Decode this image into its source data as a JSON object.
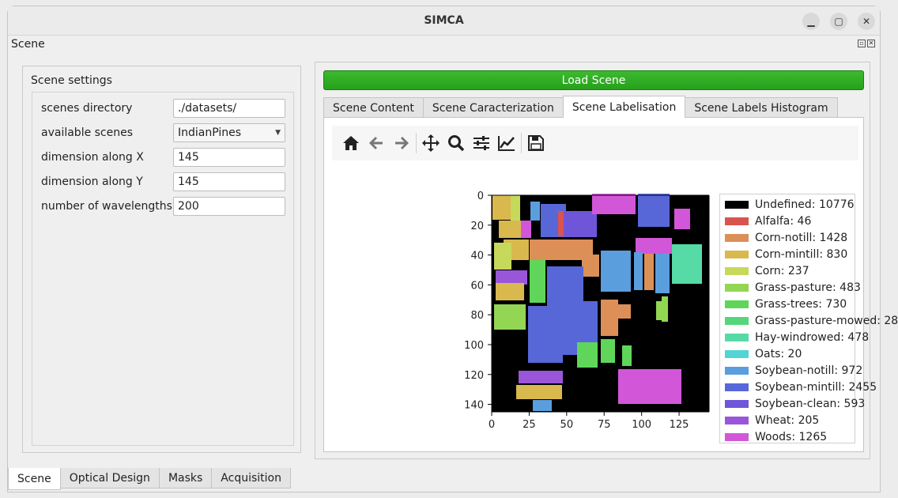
{
  "window": {
    "title": "SIMCA"
  },
  "dock": {
    "title": "Scene"
  },
  "settings": {
    "group_title": "Scene settings",
    "rows": [
      {
        "label": "scenes directory",
        "value": "./datasets/",
        "kind": "text"
      },
      {
        "label": "available scenes",
        "value": "IndianPines",
        "kind": "combo"
      },
      {
        "label": "dimension along X",
        "value": "145",
        "kind": "text"
      },
      {
        "label": "dimension along Y",
        "value": "145",
        "kind": "text"
      },
      {
        "label": "number of wavelengths",
        "value": "200",
        "kind": "text"
      }
    ]
  },
  "load_button": "Load Scene",
  "tabs": [
    {
      "label": "Scene Content",
      "active": false
    },
    {
      "label": "Scene Caracterization",
      "active": false
    },
    {
      "label": "Scene Labelisation",
      "active": true
    },
    {
      "label": "Scene Labels Histogram",
      "active": false
    }
  ],
  "toolbar": [
    "home-icon",
    "back-arrow-icon",
    "forward-arrow-icon",
    "pan-icon",
    "zoom-icon",
    "configure-subplots-icon",
    "edit-axis-icon",
    "save-icon"
  ],
  "chart_data": {
    "type": "heatmap",
    "x_ticks": [
      "0",
      "25",
      "50",
      "75",
      "100",
      "125"
    ],
    "y_ticks": [
      "0",
      "20",
      "40",
      "60",
      "80",
      "100",
      "120",
      "140"
    ],
    "xlim": [
      0,
      145
    ],
    "ylim": [
      145,
      0
    ]
  },
  "legend": [
    {
      "label": "Undefined: 10776",
      "color": "#000000"
    },
    {
      "label": "Alfalfa: 46",
      "color": "#d9534f"
    },
    {
      "label": "Corn-notill: 1428",
      "color": "#dd8f58"
    },
    {
      "label": "Corn-mintill: 830",
      "color": "#d9b84e"
    },
    {
      "label": "Corn: 237",
      "color": "#c6d95a"
    },
    {
      "label": "Grass-pasture: 483",
      "color": "#93d654"
    },
    {
      "label": "Grass-trees: 730",
      "color": "#5fd65a"
    },
    {
      "label": "Grass-pasture-mowed: 28",
      "color": "#56d67b"
    },
    {
      "label": "Hay-windrowed: 478",
      "color": "#56dba6"
    },
    {
      "label": "Oats: 20",
      "color": "#52d4d6"
    },
    {
      "label": "Soybean-notill: 972",
      "color": "#5a9ede"
    },
    {
      "label": "Soybean-mintill: 2455",
      "color": "#5767d8"
    },
    {
      "label": "Soybean-clean: 593",
      "color": "#6f56d8"
    },
    {
      "label": "Wheat: 205",
      "color": "#9a56d8"
    },
    {
      "label": "Woods: 1265",
      "color": "#d257d8"
    }
  ],
  "bottom_tabs": [
    {
      "label": "Scene",
      "active": true
    },
    {
      "label": "Optical Design",
      "active": false
    },
    {
      "label": "Masks",
      "active": false
    },
    {
      "label": "Acquisition",
      "active": false
    }
  ]
}
